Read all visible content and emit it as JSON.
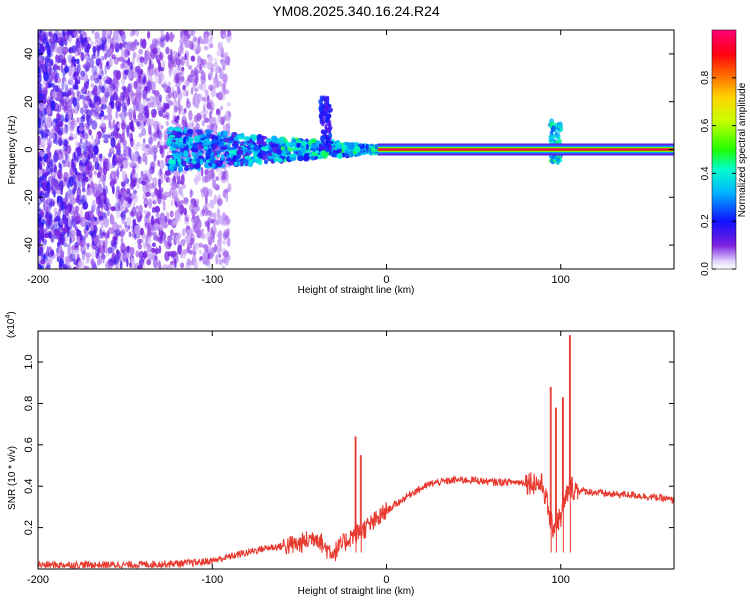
{
  "figure": {
    "title": "YM08.2025.340.16.24.R24"
  },
  "chart_data": [
    {
      "type": "heatmap",
      "title": "YM08.2025.340.16.24.R24",
      "xlabel": "Height of straight line (km)",
      "ylabel": "Frequency (Hz)",
      "xlim": [
        -200,
        165
      ],
      "ylim": [
        -50,
        50
      ],
      "x_ticks": [
        -200,
        -100,
        0,
        100
      ],
      "y_ticks": [
        -40,
        -20,
        0,
        20,
        40
      ],
      "x_tick_labels": [
        "-200",
        "-100",
        "0",
        "100"
      ],
      "y_tick_labels": [
        "-40",
        "-20",
        "0",
        "20",
        "40"
      ],
      "colorbar": {
        "label": "Normalized spectral amplitude",
        "range": [
          0,
          1
        ],
        "ticks": [
          0,
          0.2,
          0.4,
          0.6,
          0.8
        ],
        "tick_labels": [
          "0.0",
          "0.2",
          "0.4",
          "0.6",
          "0.8"
        ],
        "colormap": "rainbow (violet → blue → cyan → green → yellow → red → magenta)"
      },
      "features": [
        {
          "description": "diffuse purple noise",
          "x_range": [
            -200,
            -95
          ],
          "y_range": [
            -50,
            50
          ],
          "amplitude": 0.15
        },
        {
          "description": "emerging signal near 0 Hz",
          "x_range": [
            -120,
            -40
          ],
          "y_range": [
            -10,
            10
          ],
          "amplitude": 0.35
        },
        {
          "description": "frequency spike",
          "x": -35,
          "y_range": [
            0,
            22
          ],
          "amplitude": 0.2
        },
        {
          "description": "strong narrow line at 0 Hz",
          "x_range": [
            0,
            165
          ],
          "y": 0,
          "amplitude": 0.95
        },
        {
          "description": "frequency spike",
          "x": 97,
          "y_range": [
            -5,
            12
          ],
          "amplitude": 0.4
        }
      ]
    },
    {
      "type": "line",
      "xlabel": "Height of straight line (km)",
      "ylabel": "SNR (10 * v/v)",
      "scale_label": "(x10",
      "scale_exponent": "4",
      "xlim": [
        -200,
        165
      ],
      "ylim": [
        0,
        1.15
      ],
      "x_ticks": [
        -200,
        -100,
        0,
        100
      ],
      "y_ticks": [
        0.2,
        0.4,
        0.6,
        0.8,
        1.0
      ],
      "x_tick_labels": [
        "-200",
        "-100",
        "0",
        "100"
      ],
      "y_tick_labels": [
        "0.2",
        "0.4",
        "0.6",
        "0.8",
        "1.0"
      ],
      "color": "#e8392f",
      "series": [
        {
          "x": [
            -200,
            -175,
            -150,
            -125,
            -110,
            -100,
            -90,
            -80,
            -70,
            -60,
            -50,
            -45,
            -40,
            -35,
            -30,
            -25,
            -20,
            -15,
            -10,
            -5,
            0,
            5,
            10,
            15,
            20,
            25,
            30,
            40,
            50,
            60,
            70,
            80,
            85,
            90,
            95,
            100,
            105,
            110,
            120,
            130,
            140,
            150,
            160,
            165
          ],
          "y": [
            0.02,
            0.02,
            0.02,
            0.025,
            0.03,
            0.04,
            0.06,
            0.08,
            0.1,
            0.11,
            0.12,
            0.14,
            0.16,
            0.1,
            0.08,
            0.12,
            0.16,
            0.18,
            0.21,
            0.24,
            0.28,
            0.31,
            0.34,
            0.37,
            0.39,
            0.41,
            0.42,
            0.43,
            0.43,
            0.42,
            0.42,
            0.42,
            0.42,
            0.4,
            0.2,
            0.25,
            0.4,
            0.38,
            0.37,
            0.36,
            0.36,
            0.35,
            0.34,
            0.33
          ]
        }
      ],
      "spikes": [
        {
          "x": -18,
          "y": 0.64
        },
        {
          "x": -15,
          "y": 0.55
        },
        {
          "x": 94,
          "y": 0.88
        },
        {
          "x": 97,
          "y": 0.78
        },
        {
          "x": 101,
          "y": 0.83
        },
        {
          "x": 105,
          "y": 1.13
        }
      ]
    }
  ]
}
